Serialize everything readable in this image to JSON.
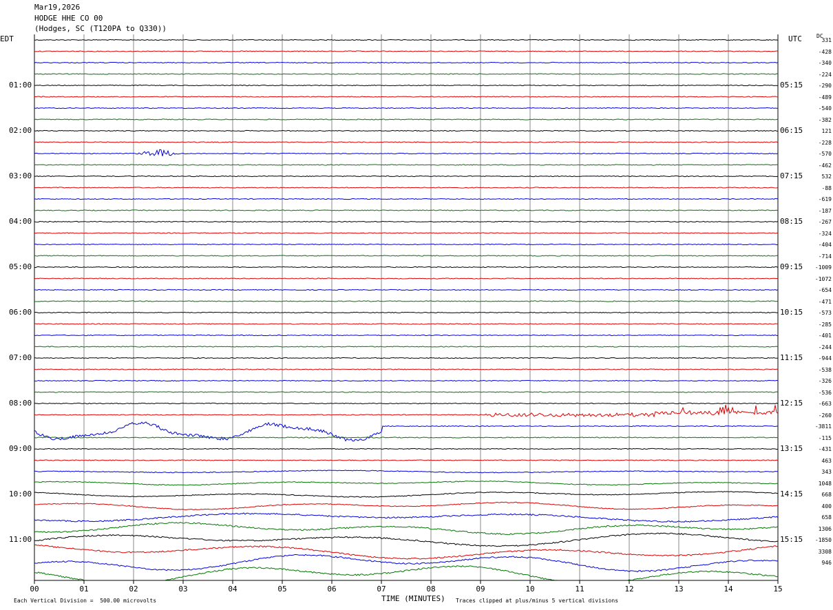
{
  "header": {
    "date": "Mar19,2026",
    "station": "HODGE HHE CO 00",
    "location": "(Hodges, SC (T120PA to Q330))"
  },
  "left_zone": "EDT",
  "right_zone": "UTC",
  "dc_label": "DC",
  "footer": {
    "scale_note": "Each Vertical Division =  500.00 microvolts",
    "clip_note": "Traces clipped at plus/minus 5 vertical divisions"
  },
  "colors": {
    "cycle": [
      "#000000",
      "#dd0000",
      "#0000dd",
      "#007700"
    ],
    "grid": "#888888"
  },
  "chart_data": {
    "type": "line",
    "xlabel": "TIME (MINUTES)",
    "x_ticks": [
      "00",
      "01",
      "02",
      "03",
      "04",
      "05",
      "06",
      "07",
      "08",
      "09",
      "10",
      "11",
      "12",
      "13",
      "14",
      "15"
    ],
    "xlim": [
      0,
      15
    ],
    "rows_count": 48,
    "left_hour_labels": [
      "01:00",
      "02:00",
      "03:00",
      "04:00",
      "05:00",
      "06:00",
      "07:00",
      "08:00",
      "09:00",
      "10:00",
      "11:00"
    ],
    "right_hour_labels": [
      "05:15",
      "06:15",
      "07:15",
      "08:15",
      "09:15",
      "10:15",
      "11:15",
      "12:15",
      "13:15",
      "14:15",
      "15:15"
    ],
    "dc_offsets": [
      "331",
      "-428",
      "-340",
      "-224",
      "-290",
      "-489",
      "-540",
      "-382",
      "121",
      "-228",
      "-570",
      "-462",
      "532",
      "-88",
      "-619",
      "-187",
      "-267",
      "-324",
      "-404",
      "-714",
      "-1009",
      "-1072",
      "-654",
      "-471",
      "-573",
      "-285",
      "-401",
      "-244",
      "-944",
      "-538",
      "-326",
      "-536",
      "-663",
      "-260",
      "-3811",
      "-115",
      "-431",
      "463",
      "343",
      "1048",
      "668",
      "400",
      "658",
      "1306",
      "-1850",
      "3308",
      "946"
    ],
    "events": [
      {
        "row": 10,
        "from_minute": 2.0,
        "to_minute": 3.0,
        "note": "small quake burst"
      },
      {
        "row": 33,
        "from_minute": 9.1,
        "to_minute": 15,
        "note": "noise increase"
      },
      {
        "row": 34,
        "from_minute": 0,
        "to_minute": 7,
        "note": "low-frequency wander"
      }
    ]
  }
}
